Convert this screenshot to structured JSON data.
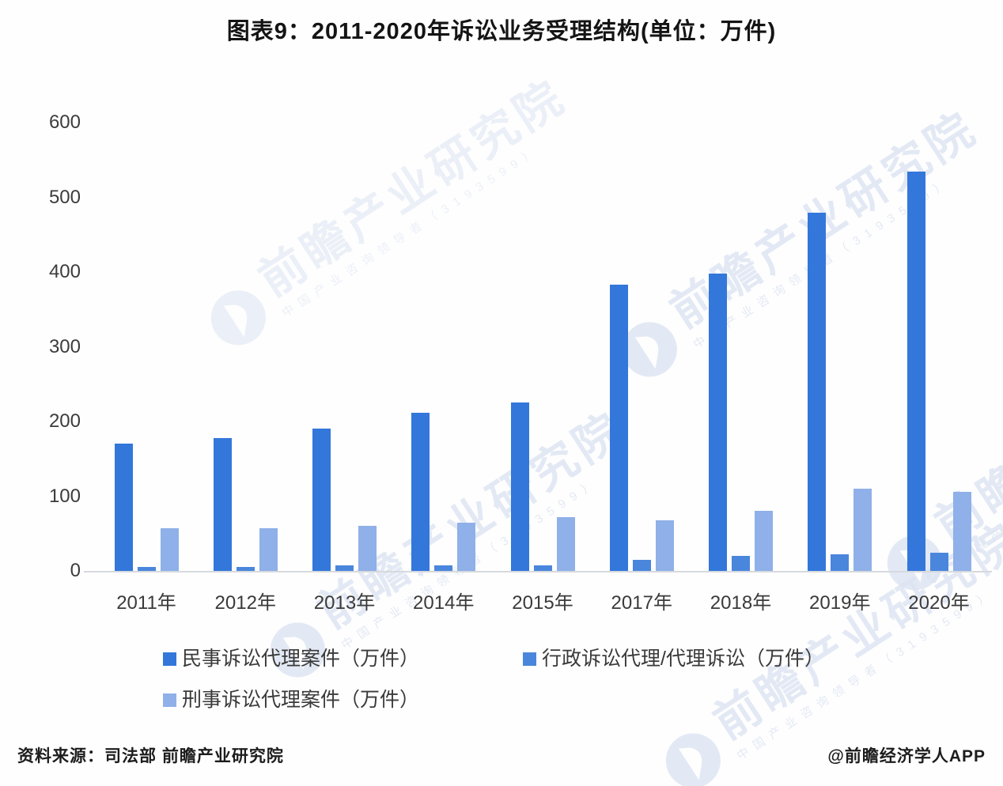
{
  "title": "图表9：2011-2020年诉讼业务受理结构(单位：万件)",
  "chart_data": {
    "type": "bar",
    "title": "图表9：2011-2020年诉讼业务受理结构(单位：万件)",
    "unit": "万件",
    "categories": [
      "2011年",
      "2012年",
      "2013年",
      "2014年",
      "2015年",
      "2017年",
      "2018年",
      "2019年",
      "2020年"
    ],
    "series": [
      {
        "name": "民事诉讼代理案件（万件）",
        "color": "#3377da",
        "values": [
          170,
          178,
          190,
          212,
          225,
          383,
          398,
          479,
          534
        ]
      },
      {
        "name": "行政诉讼代理/代理诉讼（万件）",
        "color": "#4a86dc",
        "values": [
          5,
          5,
          7,
          7,
          7,
          15,
          20,
          22,
          24
        ]
      },
      {
        "name": "刑事诉讼代理案件（万件）",
        "color": "#8fb0e8",
        "values": [
          57,
          57,
          60,
          65,
          72,
          68,
          80,
          110,
          106
        ]
      }
    ],
    "ylim": [
      0,
      600
    ],
    "yticks": [
      600,
      500,
      400,
      300,
      200,
      100,
      0
    ],
    "grid": false,
    "legend_position": "bottom"
  },
  "footer": {
    "source": "资料来源：司法部 前瞻产业研究院",
    "credit": "@前瞻经济学人APP"
  },
  "watermark": {
    "brand": "前瞻产业研究院",
    "tagline": "中国产业咨询领导者",
    "digits": "3193599"
  }
}
